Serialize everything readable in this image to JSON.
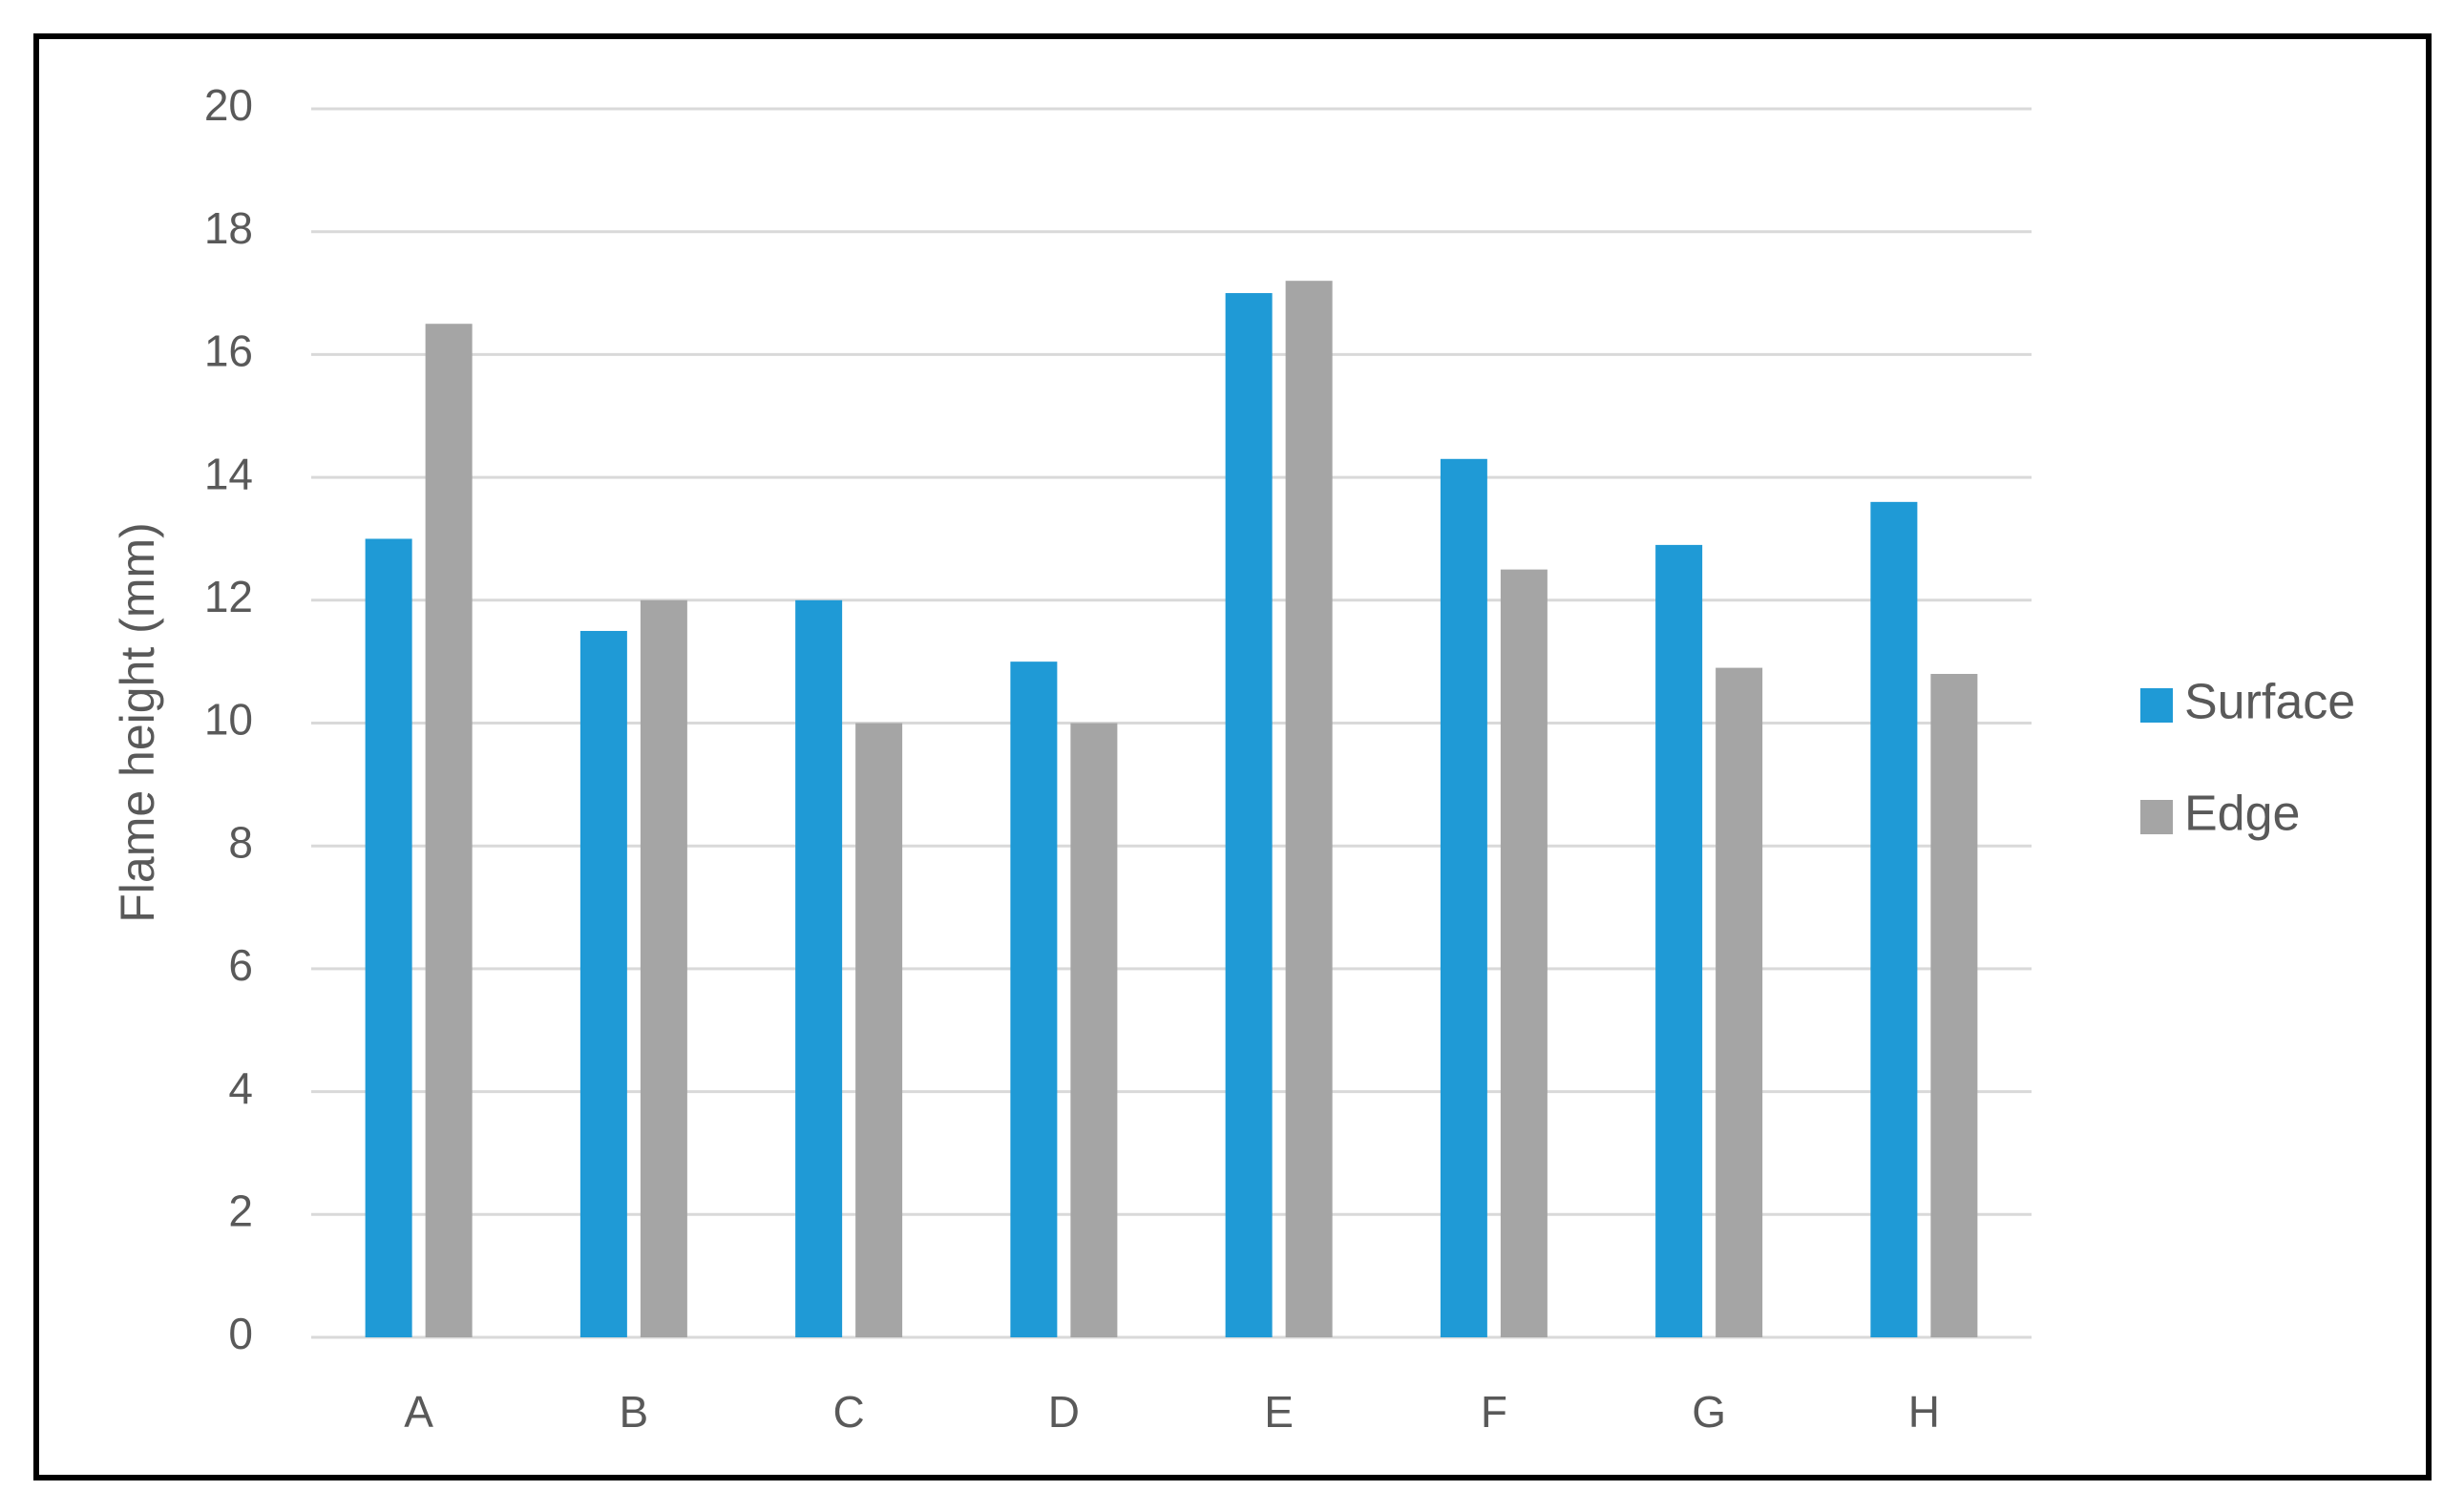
{
  "chart_data": {
    "type": "bar",
    "y_label": "Flame height (mm)",
    "categories": [
      "A",
      "B",
      "C",
      "D",
      "E",
      "F",
      "G",
      "H"
    ],
    "series": [
      {
        "name": "Surface",
        "color": "#1f9ad6",
        "values": [
          13,
          11.5,
          12,
          11,
          17,
          14.3,
          12.9,
          13.6
        ]
      },
      {
        "name": "Edge",
        "color": "#a5a5a5",
        "values": [
          16.5,
          12,
          10,
          10,
          17.2,
          12.5,
          10.9,
          10.8
        ]
      }
    ],
    "ylim": [
      0,
      20
    ],
    "yticks": [
      0,
      2,
      4,
      6,
      8,
      10,
      12,
      14,
      16,
      18,
      20
    ],
    "grid": true,
    "legend": "right"
  }
}
